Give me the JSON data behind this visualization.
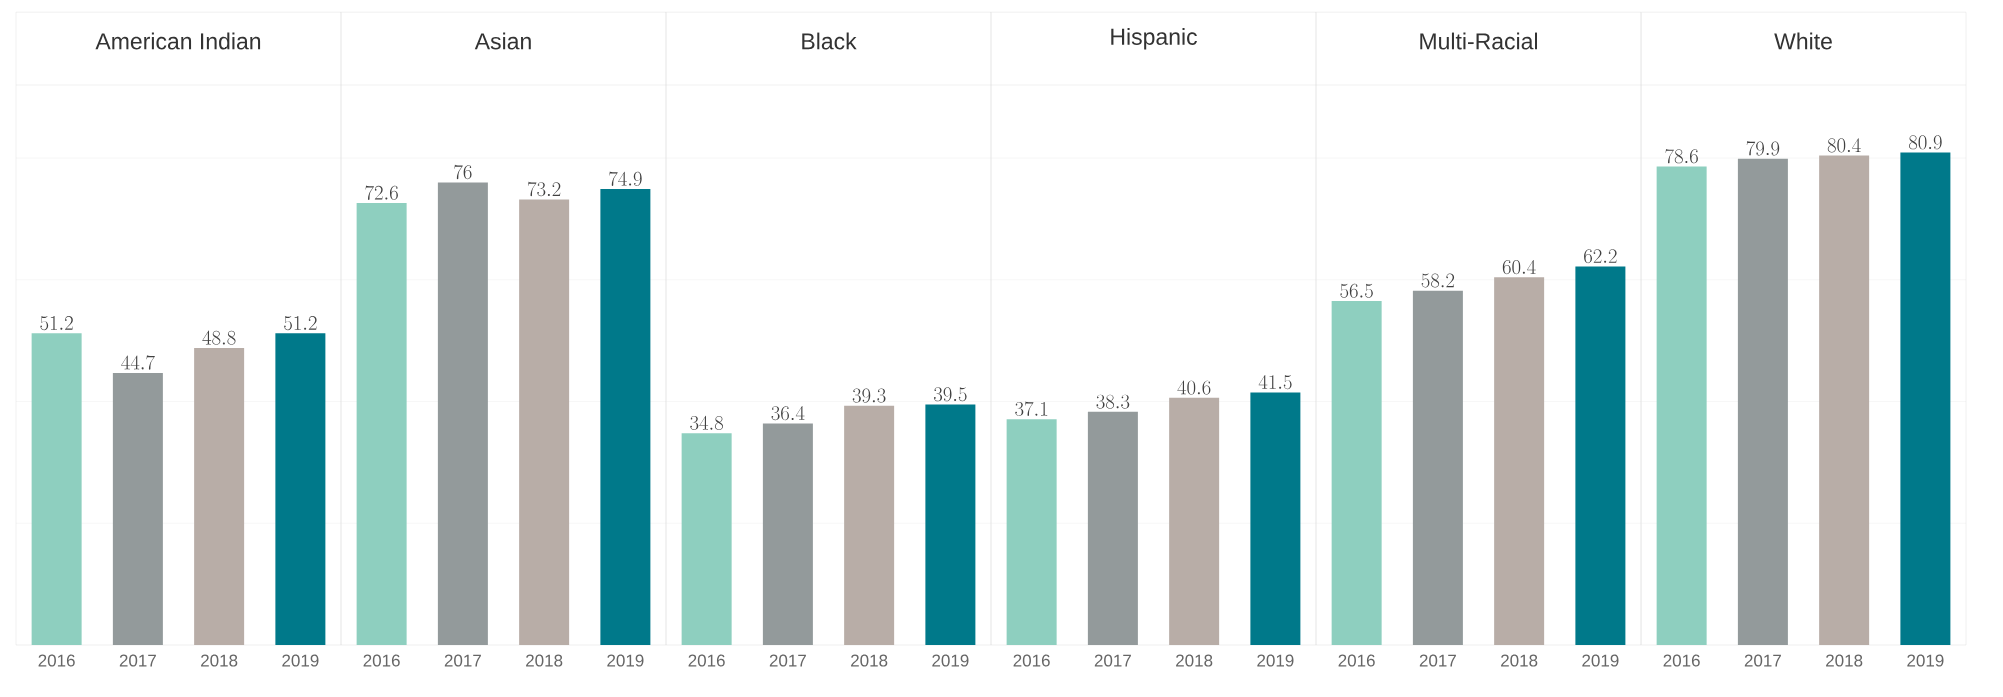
{
  "chart_data": [
    {
      "type": "bar",
      "title": "American Indian",
      "categories": [
        "2016",
        "2017",
        "2018",
        "2019"
      ],
      "values": [
        51.2,
        44.7,
        48.8,
        51.2
      ],
      "colors": [
        "#8ecfbf",
        "#939a9b",
        "#b8ada7",
        "#00798a"
      ],
      "ylim": [
        0,
        92
      ],
      "yticks": [
        {
          "value": 20,
          "label": null
        },
        {
          "value": 40,
          "label": null
        },
        {
          "value": 60,
          "label": null
        },
        {
          "value": 80,
          "label": null
        }
      ],
      "grid": "y",
      "data_labels": true,
      "tick_labels": "x"
    },
    {
      "type": "bar",
      "title": "Asian",
      "categories": [
        "2016",
        "2017",
        "2018",
        "2019"
      ],
      "values": [
        72.6,
        76,
        73.2,
        74.9
      ],
      "colors": [
        "#8ecfbf",
        "#939a9b",
        "#b8ada7",
        "#00798a"
      ],
      "ylim": [
        0,
        92
      ],
      "yticks": [
        {
          "value": 20,
          "label": null
        },
        {
          "value": 40,
          "label": null
        },
        {
          "value": 60,
          "label": null
        },
        {
          "value": 80,
          "label": null
        }
      ],
      "grid": "y",
      "data_labels": true,
      "tick_labels": "x"
    },
    {
      "type": "bar",
      "title": "Black",
      "categories": [
        "2016",
        "2017",
        "2018",
        "2019"
      ],
      "values": [
        34.8,
        36.4,
        39.3,
        39.5
      ],
      "colors": [
        "#8ecfbf",
        "#939a9b",
        "#b8ada7",
        "#00798a"
      ],
      "ylim": [
        0,
        92
      ],
      "yticks": [
        {
          "value": 20,
          "label": null
        },
        {
          "value": 40,
          "label": null
        },
        {
          "value": 60,
          "label": null
        },
        {
          "value": 80,
          "label": null
        }
      ],
      "grid": "y",
      "data_labels": true,
      "tick_labels": "x"
    },
    {
      "type": "bar",
      "title": "Hispanic",
      "categories": [
        "2016",
        "2017",
        "2018",
        "2019"
      ],
      "values": [
        37.1,
        38.3,
        40.6,
        41.5
      ],
      "colors": [
        "#8ecfbf",
        "#939a9b",
        "#b8ada7",
        "#00798a"
      ],
      "ylim": [
        0,
        92
      ],
      "yticks": [
        {
          "value": 20,
          "label": null
        },
        {
          "value": 40,
          "label": null
        },
        {
          "value": 60,
          "label": null
        },
        {
          "value": 80,
          "label": null
        }
      ],
      "grid": "y",
      "data_labels": true,
      "tick_labels": "x"
    },
    {
      "type": "bar",
      "title": "Multi-Racial",
      "categories": [
        "2016",
        "2017",
        "2018",
        "2019"
      ],
      "values": [
        56.5,
        58.2,
        60.4,
        62.2
      ],
      "colors": [
        "#8ecfbf",
        "#939a9b",
        "#b8ada7",
        "#00798a"
      ],
      "ylim": [
        0,
        92
      ],
      "yticks": [
        {
          "value": 20,
          "label": null
        },
        {
          "value": 40,
          "label": null
        },
        {
          "value": 60,
          "label": null
        },
        {
          "value": 80,
          "label": null
        }
      ],
      "grid": "y",
      "data_labels": true,
      "tick_labels": "x"
    },
    {
      "type": "bar",
      "title": "White",
      "categories": [
        "2016",
        "2017",
        "2018",
        "2019"
      ],
      "values": [
        78.6,
        79.9,
        80.4,
        80.9
      ],
      "colors": [
        "#8ecfbf",
        "#939a9b",
        "#b8ada7",
        "#00798a"
      ],
      "ylim": [
        0,
        92
      ],
      "yticks": [
        {
          "value": 20,
          "label": null
        },
        {
          "value": 40,
          "label": null
        },
        {
          "value": 60,
          "label": null
        },
        {
          "value": 80,
          "label": null
        }
      ],
      "grid": "y",
      "data_labels": true,
      "tick_labels": "x"
    }
  ]
}
